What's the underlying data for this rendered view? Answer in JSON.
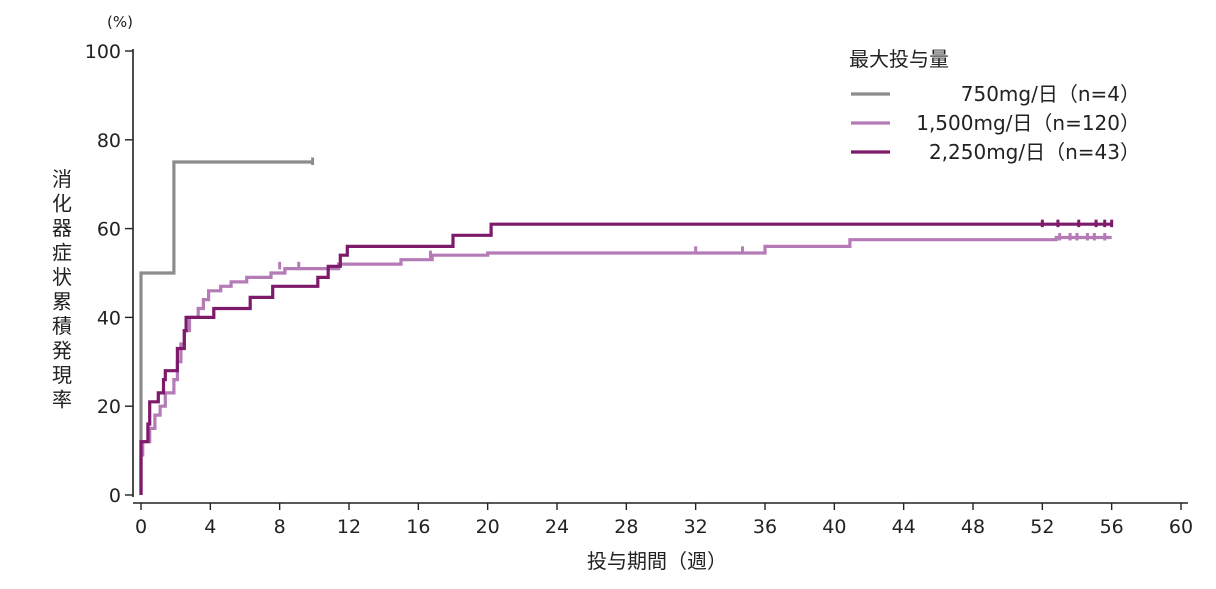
{
  "chart_data": {
    "type": "line",
    "step": true,
    "ylabel": "消化器症状累積発現率",
    "yunit": "(%)",
    "xlabel": "投与期間（週）",
    "xlim": [
      0,
      60
    ],
    "ylim": [
      0,
      100
    ],
    "xticks": [
      0,
      4,
      8,
      12,
      16,
      20,
      24,
      28,
      32,
      36,
      40,
      44,
      48,
      52,
      56,
      60
    ],
    "yticks": [
      0,
      20,
      40,
      60,
      80,
      100
    ],
    "legend_title": "最大投与量",
    "legend_position": "top-right",
    "series": [
      {
        "name": "750mg/日（n=4）",
        "color": "#8c8c8c",
        "points": [
          [
            0,
            0
          ],
          [
            0,
            50
          ],
          [
            1.9,
            50
          ],
          [
            1.9,
            75
          ],
          [
            9.9,
            75
          ]
        ],
        "censored": [
          [
            9.9,
            75
          ]
        ]
      },
      {
        "name": "1,500mg/日（n=120）",
        "color": "#b57bb6",
        "points": [
          [
            0,
            0
          ],
          [
            0,
            9
          ],
          [
            0.1,
            9
          ],
          [
            0.1,
            12
          ],
          [
            0.5,
            12
          ],
          [
            0.5,
            15
          ],
          [
            0.8,
            15
          ],
          [
            0.8,
            18
          ],
          [
            1.1,
            18
          ],
          [
            1.1,
            20
          ],
          [
            1.4,
            20
          ],
          [
            1.4,
            23
          ],
          [
            1.9,
            23
          ],
          [
            1.9,
            26
          ],
          [
            2.1,
            26
          ],
          [
            2.1,
            30
          ],
          [
            2.3,
            30
          ],
          [
            2.3,
            34
          ],
          [
            2.5,
            34
          ],
          [
            2.5,
            37
          ],
          [
            2.8,
            37
          ],
          [
            2.8,
            40
          ],
          [
            3.3,
            40
          ],
          [
            3.3,
            42
          ],
          [
            3.6,
            42
          ],
          [
            3.6,
            44
          ],
          [
            3.9,
            44
          ],
          [
            3.9,
            46
          ],
          [
            4.6,
            46
          ],
          [
            4.6,
            47
          ],
          [
            5.2,
            47
          ],
          [
            5.2,
            48
          ],
          [
            6.1,
            48
          ],
          [
            6.1,
            49
          ],
          [
            7.5,
            49
          ],
          [
            7.5,
            50
          ],
          [
            8.3,
            50
          ],
          [
            8.3,
            51
          ],
          [
            11.4,
            51
          ],
          [
            11.4,
            52
          ],
          [
            15.0,
            52
          ],
          [
            15.0,
            53
          ],
          [
            16.8,
            53
          ],
          [
            16.8,
            54
          ],
          [
            20.0,
            54
          ],
          [
            20.0,
            54.5
          ],
          [
            36.0,
            54.5
          ],
          [
            36.0,
            56
          ],
          [
            40.9,
            56
          ],
          [
            40.9,
            57.5
          ],
          [
            52.8,
            57.5
          ],
          [
            52.8,
            58
          ],
          [
            56,
            58
          ]
        ],
        "censored": [
          [
            8.0,
            51.5
          ],
          [
            9.1,
            51.5
          ],
          [
            16.7,
            54
          ],
          [
            32.0,
            55
          ],
          [
            34.7,
            55
          ],
          [
            53.0,
            58
          ],
          [
            53.6,
            58
          ],
          [
            54.0,
            58
          ],
          [
            54.6,
            58
          ],
          [
            55.0,
            58
          ],
          [
            55.6,
            58
          ]
        ]
      },
      {
        "name": "2,250mg/日（n=43）",
        "color": "#7d1a6a",
        "points": [
          [
            0,
            0
          ],
          [
            0,
            12
          ],
          [
            0.4,
            12
          ],
          [
            0.4,
            16
          ],
          [
            0.5,
            16
          ],
          [
            0.5,
            21
          ],
          [
            1.0,
            21
          ],
          [
            1.0,
            23
          ],
          [
            1.3,
            23
          ],
          [
            1.3,
            26
          ],
          [
            1.4,
            26
          ],
          [
            1.4,
            28
          ],
          [
            2.1,
            28
          ],
          [
            2.1,
            33
          ],
          [
            2.5,
            33
          ],
          [
            2.5,
            37
          ],
          [
            2.6,
            37
          ],
          [
            2.6,
            40
          ],
          [
            4.2,
            40
          ],
          [
            4.2,
            42
          ],
          [
            6.3,
            42
          ],
          [
            6.3,
            44.5
          ],
          [
            7.6,
            44.5
          ],
          [
            7.6,
            47
          ],
          [
            10.2,
            47
          ],
          [
            10.2,
            49
          ],
          [
            10.8,
            49
          ],
          [
            10.8,
            51.5
          ],
          [
            11.5,
            51.5
          ],
          [
            11.5,
            54
          ],
          [
            11.9,
            54
          ],
          [
            11.9,
            56
          ],
          [
            18.0,
            56
          ],
          [
            18.0,
            58.5
          ],
          [
            20.2,
            58.5
          ],
          [
            20.2,
            61
          ],
          [
            56,
            61
          ]
        ],
        "censored": [
          [
            52.0,
            61
          ],
          [
            52.9,
            61
          ],
          [
            54.1,
            61
          ],
          [
            55.1,
            61
          ],
          [
            55.6,
            61
          ],
          [
            56.0,
            61
          ]
        ]
      }
    ]
  }
}
